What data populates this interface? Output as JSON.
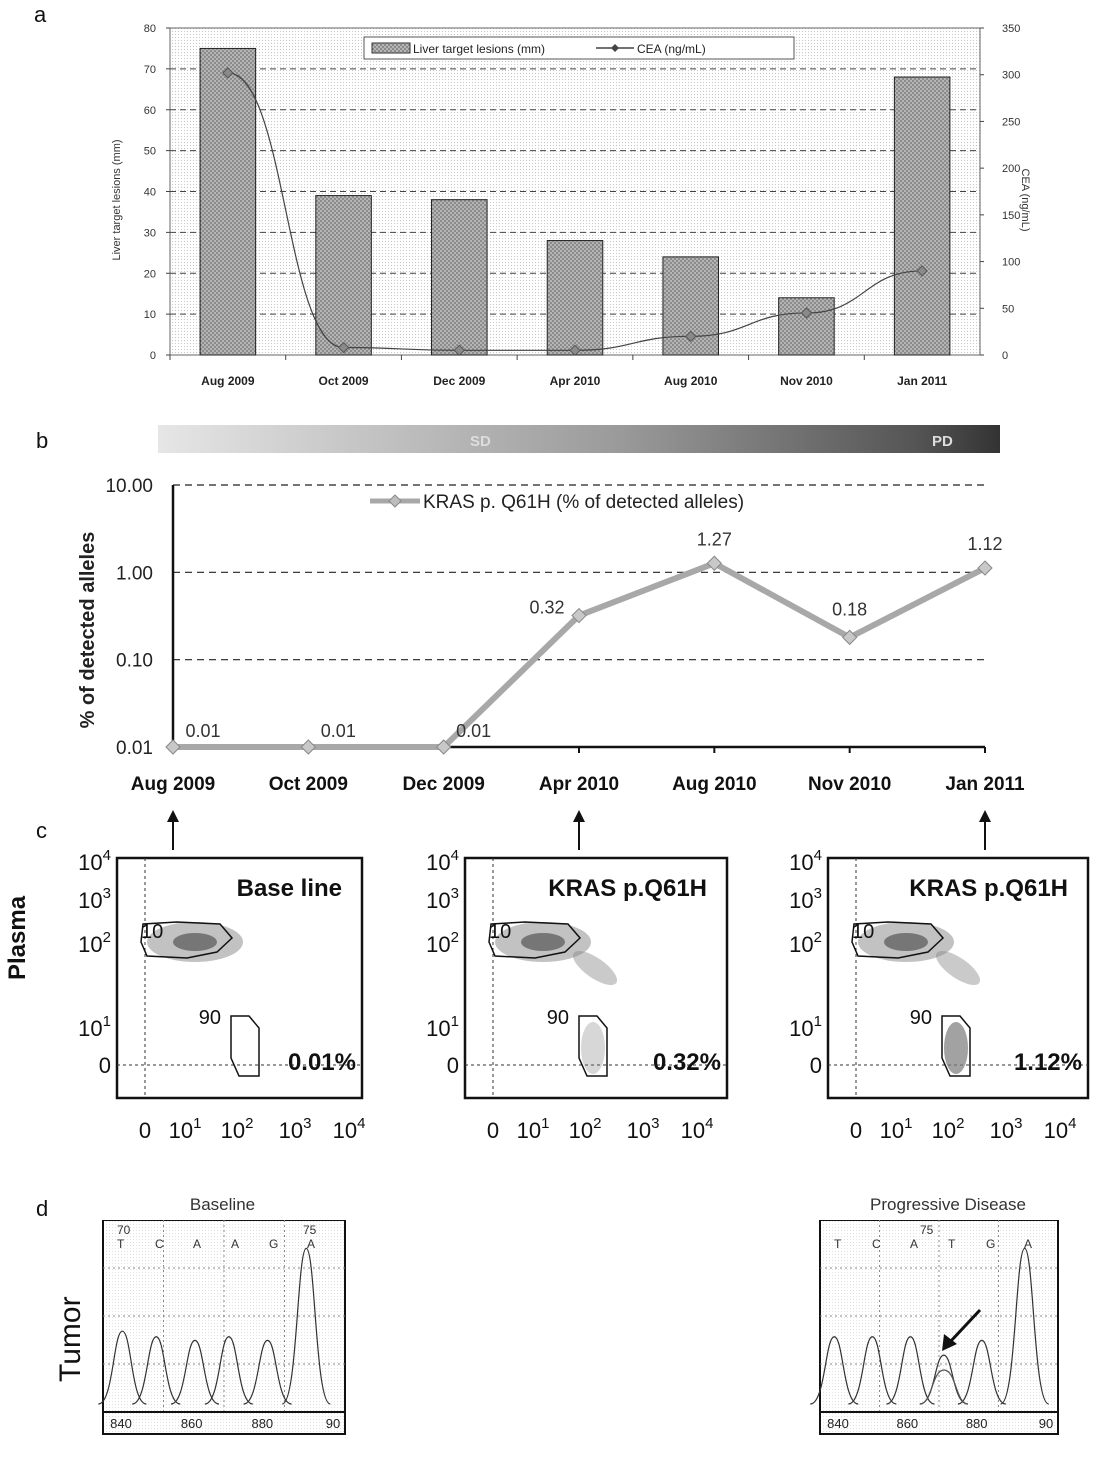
{
  "panel_labels": {
    "a": "a",
    "b": "b",
    "c": "c",
    "d": "d"
  },
  "chart_data": [
    {
      "id": "a",
      "type": "bar",
      "categories": [
        "Aug 2009",
        "Oct 2009",
        "Dec 2009",
        "Apr 2010",
        "Aug 2010",
        "Nov 2010",
        "Jan 2011"
      ],
      "series": [
        {
          "name": "Liver target lesions (mm)",
          "type": "bar",
          "axis": "left",
          "values": [
            75,
            39,
            38,
            28,
            24,
            14,
            68
          ]
        },
        {
          "name": "CEA (ng/mL)",
          "type": "line",
          "axis": "right",
          "values": [
            302,
            8,
            5,
            5,
            20,
            45,
            90
          ]
        }
      ],
      "ylabel": "Liver target lesions (mm)",
      "y2label": "CEA (ng/mL)",
      "ylim": [
        0,
        80
      ],
      "y2lim": [
        0,
        350
      ],
      "yticks": [
        "0",
        "10",
        "20",
        "30",
        "40",
        "50",
        "60",
        "70",
        "80"
      ],
      "y2ticks": [
        "0",
        "50",
        "100",
        "150",
        "200",
        "250",
        "300",
        "350"
      ],
      "grid": true,
      "legend": "top-center",
      "colors": {
        "bar": "#8f8f8f",
        "line": "#555555"
      }
    },
    {
      "id": "b",
      "type": "line",
      "scale": "log",
      "categories": [
        "Aug 2009",
        "Oct 2009",
        "Dec 2009",
        "Apr 2010",
        "Aug 2010",
        "Nov 2010",
        "Jan 2011"
      ],
      "series": [
        {
          "name": "KRAS p. Q61H (% of detected alleles)",
          "values": [
            0.01,
            0.01,
            0.01,
            0.32,
            1.27,
            0.18,
            1.12
          ]
        }
      ],
      "data_labels": [
        "0.01",
        "0.01",
        "0.01",
        "0.32",
        "1.27",
        "0.18",
        "1.12"
      ],
      "ylabel": "% of detected alleles",
      "ylim": [
        0.01,
        10
      ],
      "yticks": [
        "0.01",
        "0.10",
        "1.00",
        "10.00"
      ],
      "grid": true,
      "legend": "top-center",
      "timeline_bar": {
        "label_left": "SD",
        "label_right": "PD"
      },
      "colors": {
        "line": "#a8a8a8"
      }
    },
    {
      "id": "c",
      "type": "scatter",
      "row_label": "Plasma",
      "plots": [
        {
          "title": "Base line",
          "percent": "0.01%",
          "pointer_category": "Aug 2009"
        },
        {
          "title": "KRAS p.Q61H",
          "percent": "0.32%",
          "pointer_category": "Apr 2010"
        },
        {
          "title": "KRAS p.Q61H",
          "percent": "1.12%",
          "pointer_category": "Jan 2011"
        }
      ],
      "gate_labels": [
        "10",
        "90"
      ],
      "axis_ticks": [
        "0",
        "10",
        "10",
        "10",
        "10"
      ],
      "axis_exponents": [
        "",
        "1",
        "2",
        "3",
        "4"
      ],
      "y_tick_labels": [
        "0",
        "10",
        "10",
        "10",
        "10"
      ],
      "y_exponents": [
        "",
        "1",
        "2",
        "3",
        "4"
      ]
    },
    {
      "id": "d",
      "type": "line",
      "row_label": "Tumor",
      "traces": [
        {
          "title": "Baseline",
          "positions": [
            "70",
            "75"
          ],
          "bases": [
            "T",
            "C",
            "A",
            "A",
            "G",
            "A"
          ],
          "x_ticks": [
            "840",
            "860",
            "880",
            "90"
          ]
        },
        {
          "title": "Progressive Disease",
          "positions": [
            "75"
          ],
          "bases": [
            "T",
            "C",
            "A",
            "T",
            "G",
            "A"
          ],
          "x_ticks": [
            "840",
            "860",
            "880",
            "90"
          ]
        }
      ]
    }
  ]
}
